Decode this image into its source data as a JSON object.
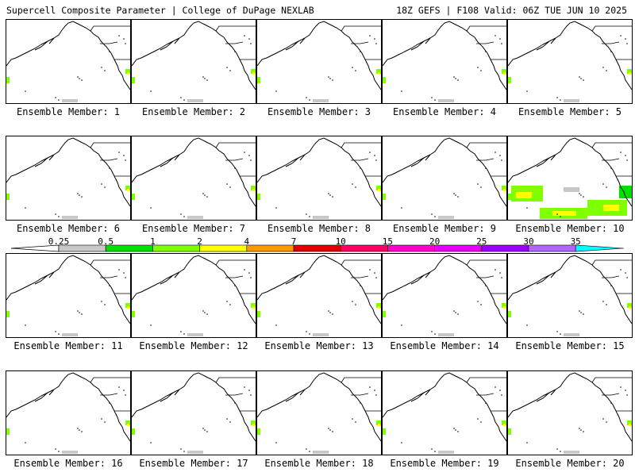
{
  "header": {
    "left": "Supercell Composite Parameter | College of DuPage NEXLAB",
    "right": "18Z GEFS | F108 Valid: 06Z TUE JUN 10 2025"
  },
  "panels": [
    {
      "label": "Ensemble Member: 1"
    },
    {
      "label": "Ensemble Member: 2"
    },
    {
      "label": "Ensemble Member: 3"
    },
    {
      "label": "Ensemble Member: 4"
    },
    {
      "label": "Ensemble Member: 5"
    },
    {
      "label": "Ensemble Member: 6"
    },
    {
      "label": "Ensemble Member: 7"
    },
    {
      "label": "Ensemble Member: 8"
    },
    {
      "label": "Ensemble Member: 9"
    },
    {
      "label": "Ensemble Member: 10"
    },
    {
      "label": "Ensemble Member: 11"
    },
    {
      "label": "Ensemble Member: 12"
    },
    {
      "label": "Ensemble Member: 13"
    },
    {
      "label": "Ensemble Member: 14"
    },
    {
      "label": "Ensemble Member: 15"
    },
    {
      "label": "Ensemble Member: 16"
    },
    {
      "label": "Ensemble Member: 17"
    },
    {
      "label": "Ensemble Member: 18"
    },
    {
      "label": "Ensemble Member: 19"
    },
    {
      "label": "Ensemble Member: 20"
    }
  ],
  "colorbar": {
    "ticks": [
      "0.25",
      "0.5",
      "1",
      "2",
      "4",
      "7",
      "10",
      "15",
      "20",
      "25",
      "30",
      "35"
    ],
    "colors": [
      "#c8c8c8",
      "#00e000",
      "#80ff00",
      "#ffff00",
      "#ff9900",
      "#e00000",
      "#ff0066",
      "#ff00cc",
      "#e600ff",
      "#9900ff",
      "#b266ff",
      "#00ffff"
    ]
  }
}
